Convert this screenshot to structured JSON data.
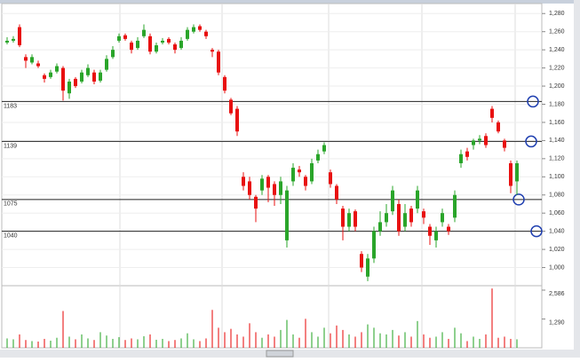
{
  "chart_data": {
    "type": "candlestick",
    "open": [
      1248,
      1250,
      1265,
      1232,
      1226,
      1225,
      1212,
      1210,
      1216,
      1220,
      1192,
      1208,
      1205,
      1212,
      1215,
      1206,
      1218,
      1232,
      1250,
      1256,
      1248,
      1242,
      1255,
      1255,
      1238,
      1248,
      1252,
      1246,
      1242,
      1252,
      1260,
      1266,
      1260,
      1240,
      1238,
      1210,
      1185,
      1175,
      1100,
      1095,
      1078,
      1085,
      1100,
      1092,
      1080,
      1030,
      1095,
      1108,
      1100,
      1095,
      1118,
      1128,
      1105,
      1090,
      1065,
      1045,
      1062,
      1015,
      990,
      1010,
      1040,
      1050,
      1062,
      1070,
      1045,
      1065,
      1065,
      1062,
      1045,
      1030,
      1050,
      1045,
      1055,
      1115,
      1128,
      1135,
      1140,
      1145,
      1175,
      1160,
      1140,
      1115,
      1095
    ],
    "high": [
      1254,
      1255,
      1268,
      1235,
      1235,
      1228,
      1214,
      1218,
      1225,
      1222,
      1208,
      1210,
      1218,
      1224,
      1218,
      1218,
      1234,
      1244,
      1258,
      1258,
      1250,
      1254,
      1268,
      1258,
      1248,
      1253,
      1254,
      1248,
      1254,
      1265,
      1268,
      1268,
      1262,
      1242,
      1240,
      1212,
      1187,
      1178,
      1105,
      1100,
      1080,
      1102,
      1102,
      1095,
      1100,
      1090,
      1115,
      1112,
      1102,
      1120,
      1130,
      1138,
      1108,
      1092,
      1068,
      1065,
      1064,
      1018,
      1015,
      1045,
      1062,
      1070,
      1090,
      1075,
      1070,
      1068,
      1090,
      1065,
      1048,
      1045,
      1065,
      1048,
      1085,
      1130,
      1132,
      1142,
      1146,
      1148,
      1178,
      1162,
      1142,
      1118,
      1118
    ],
    "low": [
      1246,
      1248,
      1243,
      1220,
      1224,
      1220,
      1204,
      1208,
      1214,
      1184,
      1186,
      1198,
      1203,
      1210,
      1202,
      1204,
      1216,
      1230,
      1248,
      1250,
      1236,
      1240,
      1253,
      1235,
      1236,
      1246,
      1246,
      1236,
      1240,
      1250,
      1258,
      1260,
      1252,
      1232,
      1212,
      1192,
      1168,
      1145,
      1085,
      1075,
      1050,
      1080,
      1072,
      1068,
      1070,
      1022,
      1090,
      1100,
      1085,
      1092,
      1115,
      1125,
      1088,
      1070,
      1030,
      1040,
      1040,
      995,
      985,
      1005,
      1035,
      1045,
      1058,
      1035,
      1040,
      1045,
      1060,
      1048,
      1025,
      1022,
      1045,
      1036,
      1050,
      1110,
      1118,
      1130,
      1136,
      1132,
      1160,
      1148,
      1128,
      1082,
      1080
    ],
    "close": [
      1250,
      1252,
      1245,
      1228,
      1232,
      1222,
      1208,
      1215,
      1222,
      1195,
      1205,
      1200,
      1215,
      1220,
      1205,
      1215,
      1230,
      1240,
      1255,
      1252,
      1240,
      1250,
      1262,
      1238,
      1245,
      1250,
      1248,
      1240,
      1250,
      1262,
      1265,
      1262,
      1255,
      1238,
      1215,
      1195,
      1170,
      1150,
      1090,
      1080,
      1065,
      1098,
      1088,
      1080,
      1095,
      1085,
      1110,
      1105,
      1090,
      1115,
      1125,
      1135,
      1092,
      1075,
      1045,
      1060,
      1045,
      1000,
      1010,
      1040,
      1050,
      1060,
      1085,
      1040,
      1060,
      1050,
      1085,
      1055,
      1035,
      1040,
      1060,
      1040,
      1080,
      1125,
      1122,
      1140,
      1142,
      1135,
      1165,
      1150,
      1132,
      1090,
      1115
    ],
    "up_color": "#2aa52a",
    "down_color": "#e81010",
    "ylim": [
      980,
      1291
    ],
    "yticks": [
      {
        "value": 1000,
        "label": "1,000"
      },
      {
        "value": 1020,
        "label": "1,020"
      },
      {
        "value": 1040,
        "label": "1,040"
      },
      {
        "value": 1060,
        "label": "1,060"
      },
      {
        "value": 1080,
        "label": "1,080"
      },
      {
        "value": 1100,
        "label": "1,100"
      },
      {
        "value": 1120,
        "label": "1,120"
      },
      {
        "value": 1140,
        "label": "1,140"
      },
      {
        "value": 1160,
        "label": "1,160"
      },
      {
        "value": 1180,
        "label": "1,180"
      },
      {
        "value": 1200,
        "label": "1,200"
      },
      {
        "value": 1220,
        "label": "1,220"
      },
      {
        "value": 1240,
        "label": "1,240"
      },
      {
        "value": 1260,
        "label": "1,260"
      },
      {
        "value": 1280,
        "label": "1,280"
      }
    ],
    "levels": [
      1183,
      1139,
      1075,
      1040
    ],
    "volume": {
      "values": [
        420,
        380,
        600,
        350,
        300,
        280,
        400,
        320,
        450,
        1650,
        500,
        380,
        600,
        420,
        350,
        700,
        550,
        400,
        480,
        350,
        420,
        380,
        520,
        600,
        360,
        400,
        300,
        350,
        420,
        650,
        380,
        300,
        420,
        1700,
        900,
        700,
        850,
        600,
        500,
        1100,
        700,
        450,
        600,
        500,
        800,
        1250,
        600,
        450,
        1300,
        700,
        500,
        900,
        650,
        1000,
        800,
        600,
        500,
        700,
        1050,
        900,
        650,
        600,
        800,
        550,
        700,
        500,
        1200,
        600,
        450,
        500,
        700,
        400,
        900,
        650,
        300,
        500,
        400,
        600,
        2660,
        450,
        500,
        400,
        380
      ],
      "ylim": [
        0,
        2785
      ],
      "yticks": [
        {
          "value": 2586,
          "label": "2,586"
        },
        {
          "value": 1290,
          "label": "1,290"
        }
      ]
    }
  }
}
